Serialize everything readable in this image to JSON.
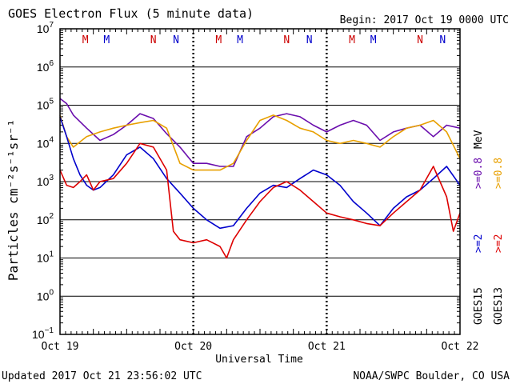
{
  "header": {
    "title": "GOES Electron Flux (5 minute data)",
    "begin": "Begin: 2017 Oct 19 0000 UTC"
  },
  "footer": {
    "updated": "Updated 2017 Oct 21 23:56:02 UTC",
    "source": "NOAA/SWPC Boulder, CO USA"
  },
  "chart_data": {
    "type": "line",
    "title": "GOES Electron Flux (5 minute data)",
    "xlabel": "Universal Time",
    "ylabel": "Particles cm⁻²s⁻¹sr⁻¹",
    "x_unit": "days since 2017 Oct 19 0000 UTC",
    "xlim": [
      0,
      3
    ],
    "ylim": [
      0.1,
      10000000
    ],
    "yscale": "log",
    "x_ticks": [
      {
        "x": 0,
        "label": "Oct 19"
      },
      {
        "x": 1,
        "label": "Oct 20"
      },
      {
        "x": 2,
        "label": "Oct 21"
      },
      {
        "x": 3,
        "label": "Oct 22"
      }
    ],
    "y_ticks": [
      {
        "value": 0.1,
        "base": "10",
        "exp": "−1"
      },
      {
        "value": 1,
        "base": "10",
        "exp": "0"
      },
      {
        "value": 10,
        "base": "10",
        "exp": "1"
      },
      {
        "value": 100,
        "base": "10",
        "exp": "2"
      },
      {
        "value": 1000,
        "base": "10",
        "exp": "3"
      },
      {
        "value": 10000,
        "base": "10",
        "exp": "4"
      },
      {
        "value": 100000,
        "base": "10",
        "exp": "5"
      },
      {
        "value": 1000000,
        "base": "10",
        "exp": "6"
      },
      {
        "value": 10000000,
        "base": "10",
        "exp": "7"
      }
    ],
    "grid": "horizontal lines at each decade; dashed line at 1000",
    "threshold": 1000,
    "noon_midnight_markers": [
      {
        "x": 0.19,
        "label": "M",
        "color": "#cc0000"
      },
      {
        "x": 0.35,
        "label": "M",
        "color": "#0000cc"
      },
      {
        "x": 0.7,
        "label": "N",
        "color": "#cc0000"
      },
      {
        "x": 0.87,
        "label": "N",
        "color": "#0000cc"
      },
      {
        "x": 1.19,
        "label": "M",
        "color": "#cc0000"
      },
      {
        "x": 1.35,
        "label": "M",
        "color": "#0000cc"
      },
      {
        "x": 1.7,
        "label": "N",
        "color": "#cc0000"
      },
      {
        "x": 1.87,
        "label": "N",
        "color": "#0000cc"
      },
      {
        "x": 2.19,
        "label": "M",
        "color": "#cc0000"
      },
      {
        "x": 2.35,
        "label": "M",
        "color": "#0000cc"
      },
      {
        "x": 2.7,
        "label": "N",
        "color": "#cc0000"
      },
      {
        "x": 2.87,
        "label": "N",
        "color": "#0000cc"
      }
    ],
    "legend": [
      {
        "energy": ">=0.8 MeV",
        "satellite": "GOES15",
        "color": "#6a0dad"
      },
      {
        "energy": ">=0.8 MeV",
        "satellite": "GOES13",
        "color": "#e8a000"
      },
      {
        "energy": ">=2",
        "satellite": "GOES15",
        "color": "#0000cc"
      },
      {
        "energy": ">=2",
        "satellite": "GOES13",
        "color": "#dd0000"
      }
    ],
    "legend_text": {
      "mev": "MeV",
      "energy_high": ">=0.8",
      "energy_low": ">=2",
      "goes15": "GOES15",
      "goes13": "GOES13"
    },
    "series": [
      {
        "name": "GOES15 >=0.8 MeV",
        "color": "#6a0dad",
        "x": [
          0,
          0.05,
          0.1,
          0.2,
          0.3,
          0.4,
          0.5,
          0.6,
          0.7,
          0.8,
          0.9,
          1.0,
          1.1,
          1.2,
          1.3,
          1.4,
          1.5,
          1.6,
          1.7,
          1.8,
          1.9,
          2.0,
          2.1,
          2.2,
          2.3,
          2.4,
          2.5,
          2.6,
          2.7,
          2.8,
          2.9,
          3.0
        ],
        "y": [
          150000,
          110000,
          55000,
          25000,
          12000,
          17000,
          30000,
          60000,
          45000,
          18000,
          8000,
          3000,
          3000,
          2500,
          2500,
          15000,
          25000,
          50000,
          60000,
          50000,
          30000,
          20000,
          30000,
          40000,
          30000,
          12000,
          20000,
          25000,
          30000,
          15000,
          30000,
          25000
        ]
      },
      {
        "name": "GOES13 >=0.8 MeV",
        "color": "#e8a000",
        "x": [
          0,
          0.05,
          0.1,
          0.2,
          0.3,
          0.4,
          0.5,
          0.6,
          0.7,
          0.8,
          0.9,
          1.0,
          1.1,
          1.2,
          1.3,
          1.4,
          1.5,
          1.6,
          1.7,
          1.8,
          1.9,
          2.0,
          2.1,
          2.2,
          2.3,
          2.4,
          2.5,
          2.6,
          2.7,
          2.8,
          2.9,
          3.0
        ],
        "y": [
          55000,
          15000,
          8000,
          15000,
          20000,
          25000,
          30000,
          35000,
          40000,
          25000,
          3000,
          2000,
          2000,
          2000,
          3000,
          12000,
          40000,
          55000,
          40000,
          25000,
          20000,
          12000,
          10000,
          12000,
          10000,
          8000,
          15000,
          25000,
          30000,
          40000,
          20000,
          4000
        ]
      },
      {
        "name": "GOES15 >=2 MeV",
        "color": "#0000cc",
        "x": [
          0,
          0.05,
          0.1,
          0.15,
          0.2,
          0.25,
          0.3,
          0.4,
          0.5,
          0.6,
          0.7,
          0.8,
          0.9,
          1.0,
          1.1,
          1.2,
          1.3,
          1.4,
          1.5,
          1.6,
          1.7,
          1.8,
          1.9,
          2.0,
          2.1,
          2.2,
          2.3,
          2.4,
          2.5,
          2.6,
          2.7,
          2.8,
          2.9,
          3.0
        ],
        "y": [
          50000,
          15000,
          4000,
          1500,
          800,
          600,
          700,
          1500,
          5000,
          8000,
          4000,
          1200,
          500,
          200,
          100,
          60,
          70,
          200,
          500,
          800,
          700,
          1200,
          2000,
          1500,
          800,
          300,
          150,
          70,
          200,
          400,
          600,
          1200,
          2500,
          800
        ]
      },
      {
        "name": "GOES13 >=2 MeV",
        "color": "#dd0000",
        "x": [
          0,
          0.05,
          0.1,
          0.15,
          0.2,
          0.25,
          0.3,
          0.4,
          0.5,
          0.6,
          0.7,
          0.8,
          0.85,
          0.9,
          1.0,
          1.1,
          1.2,
          1.25,
          1.3,
          1.4,
          1.5,
          1.6,
          1.7,
          1.8,
          1.9,
          2.0,
          2.1,
          2.2,
          2.3,
          2.4,
          2.5,
          2.6,
          2.7,
          2.8,
          2.9,
          2.95,
          3.0
        ],
        "y": [
          2000,
          800,
          700,
          1000,
          1500,
          600,
          1000,
          1200,
          3000,
          10000,
          8000,
          2000,
          50,
          30,
          25,
          30,
          20,
          10,
          30,
          100,
          300,
          700,
          1000,
          600,
          300,
          150,
          120,
          100,
          80,
          70,
          150,
          300,
          600,
          2500,
          400,
          50,
          150
        ]
      }
    ]
  }
}
